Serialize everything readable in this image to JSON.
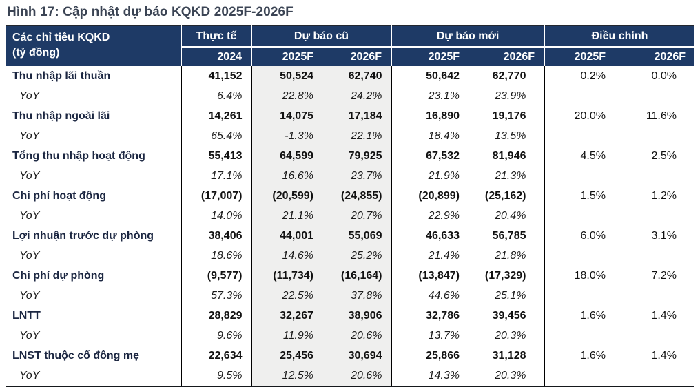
{
  "figure": {
    "title": "Hình 17: Cập nhật dự báo KQKD 2025F-2026F"
  },
  "colors": {
    "header_bg": "#1e3a66",
    "header_text": "#ffffff",
    "title_text": "#3b4454",
    "shaded_column_bg": "#efefee",
    "label_text": "#1b2641",
    "grid_line": "#000000"
  },
  "table": {
    "header": {
      "row_label": "Các chỉ tiêu KQKD",
      "row_label_unit": "(tỷ đồng)",
      "groups": [
        {
          "label": "Thực tế",
          "years": [
            "2024"
          ]
        },
        {
          "label": "Dự báo cũ",
          "years": [
            "2025F",
            "2026F"
          ]
        },
        {
          "label": "Dự báo mới",
          "years": [
            "2025F",
            "2026F"
          ]
        },
        {
          "label": "Điều chỉnh",
          "years": [
            "2025F",
            "2026F"
          ]
        }
      ]
    },
    "columns": [
      "Thực tế 2024",
      "Dự báo cũ 2025F",
      "Dự báo cũ 2026F",
      "Dự báo mới 2025F",
      "Dự báo mới 2026F",
      "Điều chỉnh 2025F",
      "Điều chỉnh 2026F"
    ],
    "rows": [
      {
        "type": "metric",
        "label": "Thu nhập lãi thuần",
        "values": [
          "41,152",
          "50,524",
          "62,740",
          "50,642",
          "62,770",
          "0.2%",
          "0.0%"
        ]
      },
      {
        "type": "yoy",
        "label": "YoY",
        "values": [
          "6.4%",
          "22.8%",
          "24.2%",
          "23.1%",
          "23.9%",
          "",
          ""
        ]
      },
      {
        "type": "metric",
        "label": "Thu nhập ngoài lãi",
        "values": [
          "14,261",
          "14,075",
          "17,184",
          "16,890",
          "19,176",
          "20.0%",
          "11.6%"
        ]
      },
      {
        "type": "yoy",
        "label": "YoY",
        "values": [
          "65.4%",
          "-1.3%",
          "22.1%",
          "18.4%",
          "13.5%",
          "",
          ""
        ]
      },
      {
        "type": "metric",
        "label": "Tổng thu nhập hoạt động",
        "values": [
          "55,413",
          "64,599",
          "79,925",
          "67,532",
          "81,946",
          "4.5%",
          "2.5%"
        ]
      },
      {
        "type": "yoy",
        "label": "YoY",
        "values": [
          "17.1%",
          "16.6%",
          "23.7%",
          "21.9%",
          "21.3%",
          "",
          ""
        ]
      },
      {
        "type": "metric",
        "label": "Chi phí hoạt động",
        "values": [
          "(17,007)",
          "(20,599)",
          "(24,855)",
          "(20,899)",
          "(25,162)",
          "1.5%",
          "1.2%"
        ]
      },
      {
        "type": "yoy",
        "label": "YoY",
        "values": [
          "14.0%",
          "21.1%",
          "20.7%",
          "22.9%",
          "20.4%",
          "",
          ""
        ]
      },
      {
        "type": "metric",
        "label": "Lợi nhuận trước dự phòng",
        "values": [
          "38,406",
          "44,001",
          "55,069",
          "46,633",
          "56,785",
          "6.0%",
          "3.1%"
        ]
      },
      {
        "type": "yoy",
        "label": "YoY",
        "values": [
          "18.6%",
          "14.6%",
          "25.2%",
          "21.4%",
          "21.8%",
          "",
          ""
        ]
      },
      {
        "type": "metric",
        "label": "Chi phí dự phòng",
        "values": [
          "(9,577)",
          "(11,734)",
          "(16,164)",
          "(13,847)",
          "(17,329)",
          "18.0%",
          "7.2%"
        ]
      },
      {
        "type": "yoy",
        "label": "YoY",
        "values": [
          "57.3%",
          "22.5%",
          "37.8%",
          "44.6%",
          "25.1%",
          "",
          ""
        ]
      },
      {
        "type": "metric",
        "label": "LNTT",
        "values": [
          "28,829",
          "32,267",
          "38,906",
          "32,786",
          "39,456",
          "1.6%",
          "1.4%"
        ]
      },
      {
        "type": "yoy",
        "label": "YoY",
        "values": [
          "9.6%",
          "11.9%",
          "20.6%",
          "13.7%",
          "20.3%",
          "",
          ""
        ]
      },
      {
        "type": "metric",
        "label": "LNST thuộc cổ đông mẹ",
        "values": [
          "22,634",
          "25,456",
          "30,694",
          "25,866",
          "31,128",
          "1.6%",
          "1.4%"
        ]
      },
      {
        "type": "yoy",
        "label": "YoY",
        "values": [
          "9.5%",
          "12.5%",
          "20.6%",
          "14.3%",
          "20.3%",
          "",
          ""
        ]
      }
    ]
  }
}
